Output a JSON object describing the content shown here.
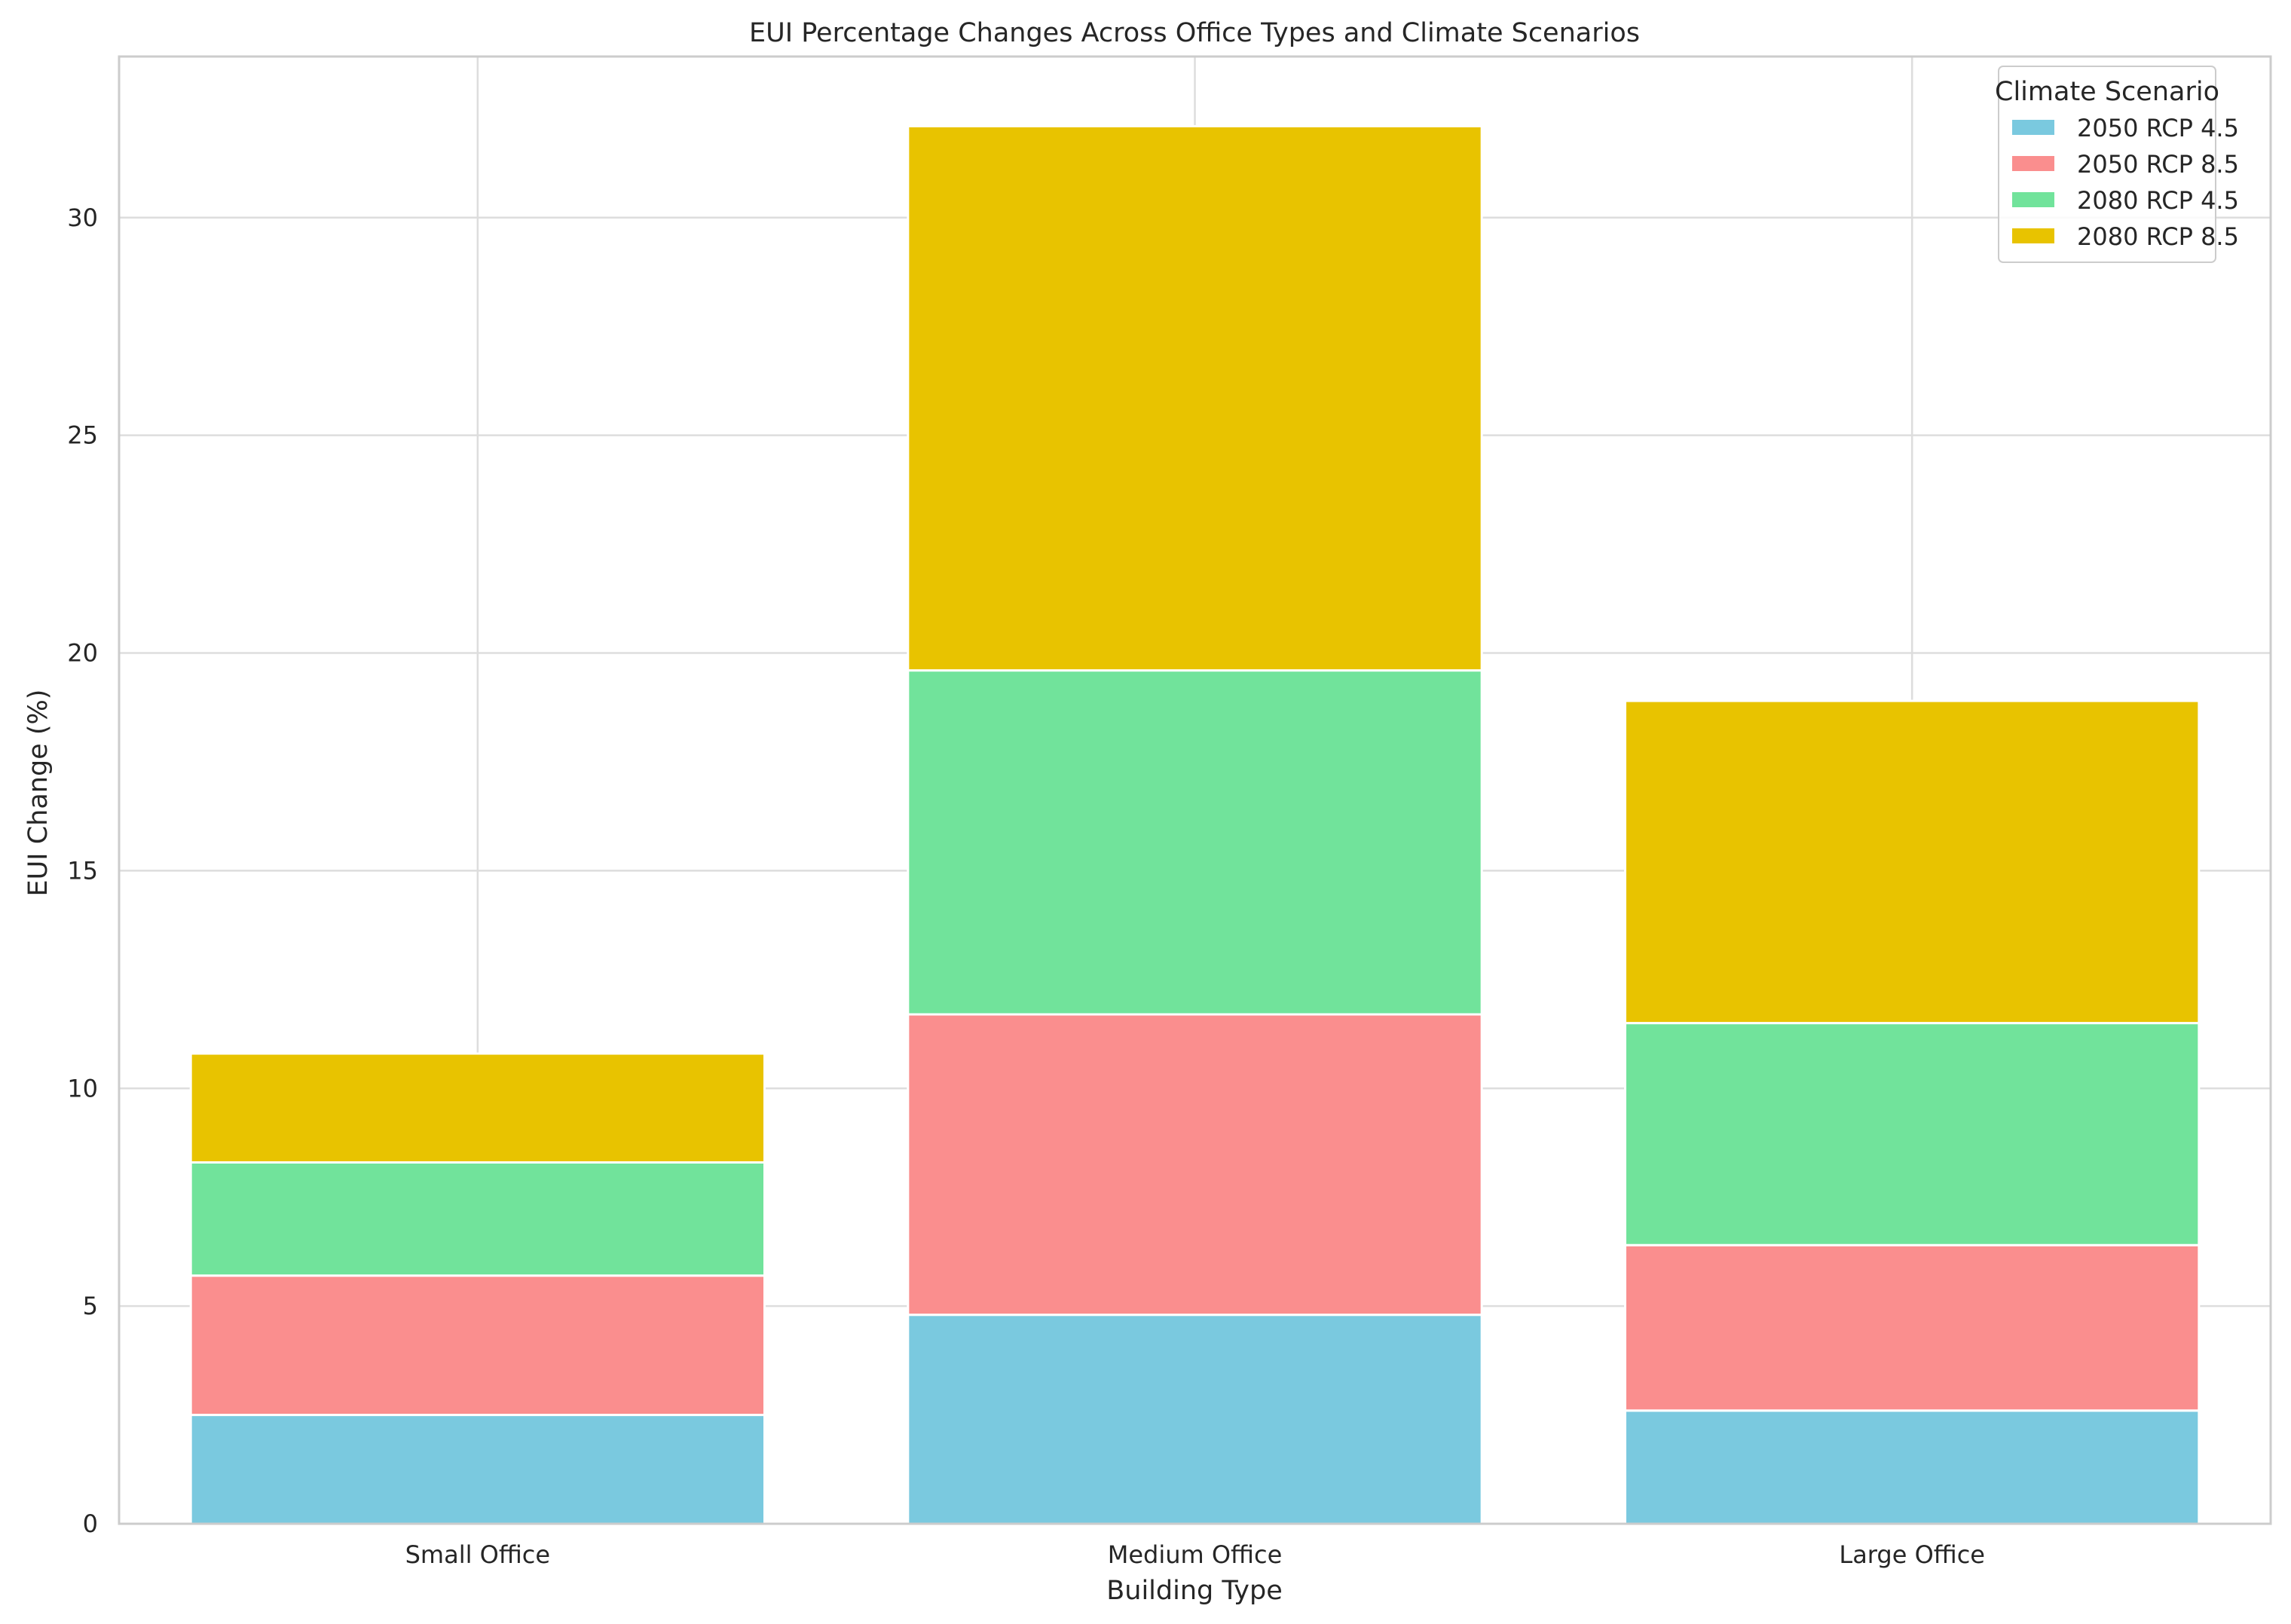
{
  "chart_data": {
    "type": "bar",
    "stacked": true,
    "title": "EUI Percentage Changes Across Office Types and Climate Scenarios",
    "xlabel": "Building Type",
    "ylabel": "EUI Change (%)",
    "categories": [
      "Small Office",
      "Medium Office",
      "Large Office"
    ],
    "ylim": [
      0,
      33.7
    ],
    "yticks": [
      0,
      5,
      10,
      15,
      20,
      25,
      30
    ],
    "grid": true,
    "legend": {
      "title": "Climate Scenario",
      "position": "top-right"
    },
    "series": [
      {
        "name": "2050 RCP 4.5",
        "color": "#7ac9df",
        "values": [
          2.5,
          4.8,
          2.6
        ]
      },
      {
        "name": "2050 RCP 8.5",
        "color": "#fa8e8e",
        "values": [
          3.2,
          6.9,
          3.8
        ]
      },
      {
        "name": "2080 RCP 4.5",
        "color": "#71e39b",
        "values": [
          2.6,
          7.9,
          5.1
        ]
      },
      {
        "name": "2080 RCP 8.5",
        "color": "#e8c300",
        "values": [
          2.5,
          12.5,
          7.4
        ]
      }
    ]
  }
}
